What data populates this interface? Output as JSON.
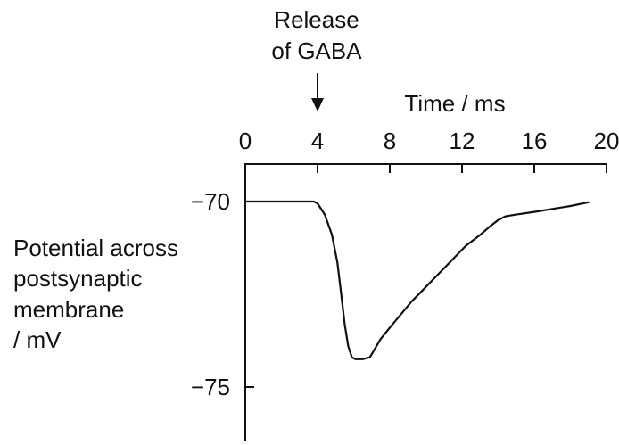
{
  "chart_data": {
    "type": "line",
    "annotation": {
      "line1": "Release",
      "line2": "of GABA",
      "at_x": 4
    },
    "xlabel": "Time / ms",
    "ylabel_lines": [
      "Potential across",
      "postsynaptic",
      "membrane",
      "/ mV"
    ],
    "x_ticks": [
      "0",
      "4",
      "8",
      "12",
      "16",
      "20"
    ],
    "y_ticks": [
      "−70",
      "−75"
    ],
    "x_tick_values": [
      0,
      4,
      8,
      12,
      16,
      20
    ],
    "y_tick_values": [
      -70,
      -75
    ],
    "xlim": [
      0,
      20
    ],
    "ylim": [
      -76.3,
      -69.6
    ],
    "axis_position": "x-axis on top",
    "grid": false,
    "series": [
      {
        "x": [
          0,
          3.8,
          4.0,
          4.4,
          4.8,
          5.1,
          5.3,
          5.5,
          5.7,
          5.9,
          6.1,
          6.5,
          6.9,
          7.2,
          7.5,
          8.0,
          8.6,
          9.2,
          9.8,
          10.4,
          11.0,
          11.6,
          12.2,
          13.0,
          13.6,
          14.0,
          14.4,
          15.0,
          16.0,
          17.0,
          18.0,
          19.0
        ],
        "y": [
          -70,
          -70,
          -70.05,
          -70.35,
          -70.9,
          -71.65,
          -72.45,
          -73.3,
          -73.9,
          -74.2,
          -74.25,
          -74.25,
          -74.2,
          -73.95,
          -73.7,
          -73.4,
          -73.05,
          -72.7,
          -72.4,
          -72.1,
          -71.8,
          -71.5,
          -71.2,
          -70.9,
          -70.65,
          -70.5,
          -70.4,
          -70.35,
          -70.28,
          -70.2,
          -70.12,
          -70.02
        ]
      }
    ]
  }
}
